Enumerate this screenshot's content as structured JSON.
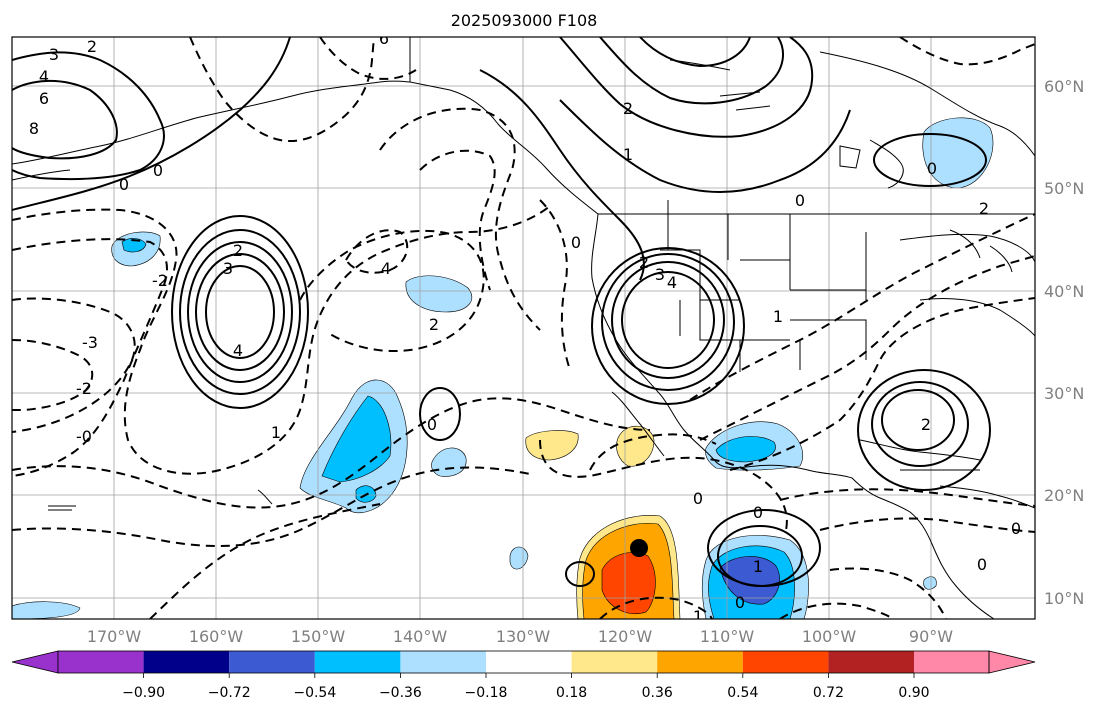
{
  "title": "2025093000 F108",
  "map": {
    "lon_labels": [
      "170°W",
      "160°W",
      "150°W",
      "140°W",
      "130°W",
      "120°W",
      "110°W",
      "100°W",
      "90°W"
    ],
    "lat_labels": [
      "60°N",
      "50°N",
      "40°N",
      "30°N",
      "20°N",
      "10°N"
    ],
    "contour_labels": [
      "3",
      "2",
      "4",
      "6",
      "8",
      "0",
      "0",
      "2",
      "3",
      "4",
      "-2",
      "-3",
      "-2",
      "-0",
      "1",
      "4",
      "2",
      "0",
      "2",
      "3",
      "4",
      "2",
      "1",
      "0",
      "0",
      "1",
      "2",
      "2",
      "0",
      "0",
      "1",
      "0",
      "1",
      "0",
      "0",
      "0",
      "6"
    ],
    "marker": "filled circle"
  },
  "colorbar": {
    "ticks": [
      "−0.90",
      "−0.72",
      "−0.54",
      "−0.36",
      "−0.18",
      "0.18",
      "0.36",
      "0.54",
      "0.72",
      "0.90"
    ],
    "colors": [
      "#9932CC",
      "#00008B",
      "#3C5AD2",
      "#00BFFF",
      "#ADDFFF",
      "#FFFFFF",
      "#FFE88C",
      "#FFA500",
      "#FF4500",
      "#B22222",
      "#FF88A8"
    ]
  }
}
